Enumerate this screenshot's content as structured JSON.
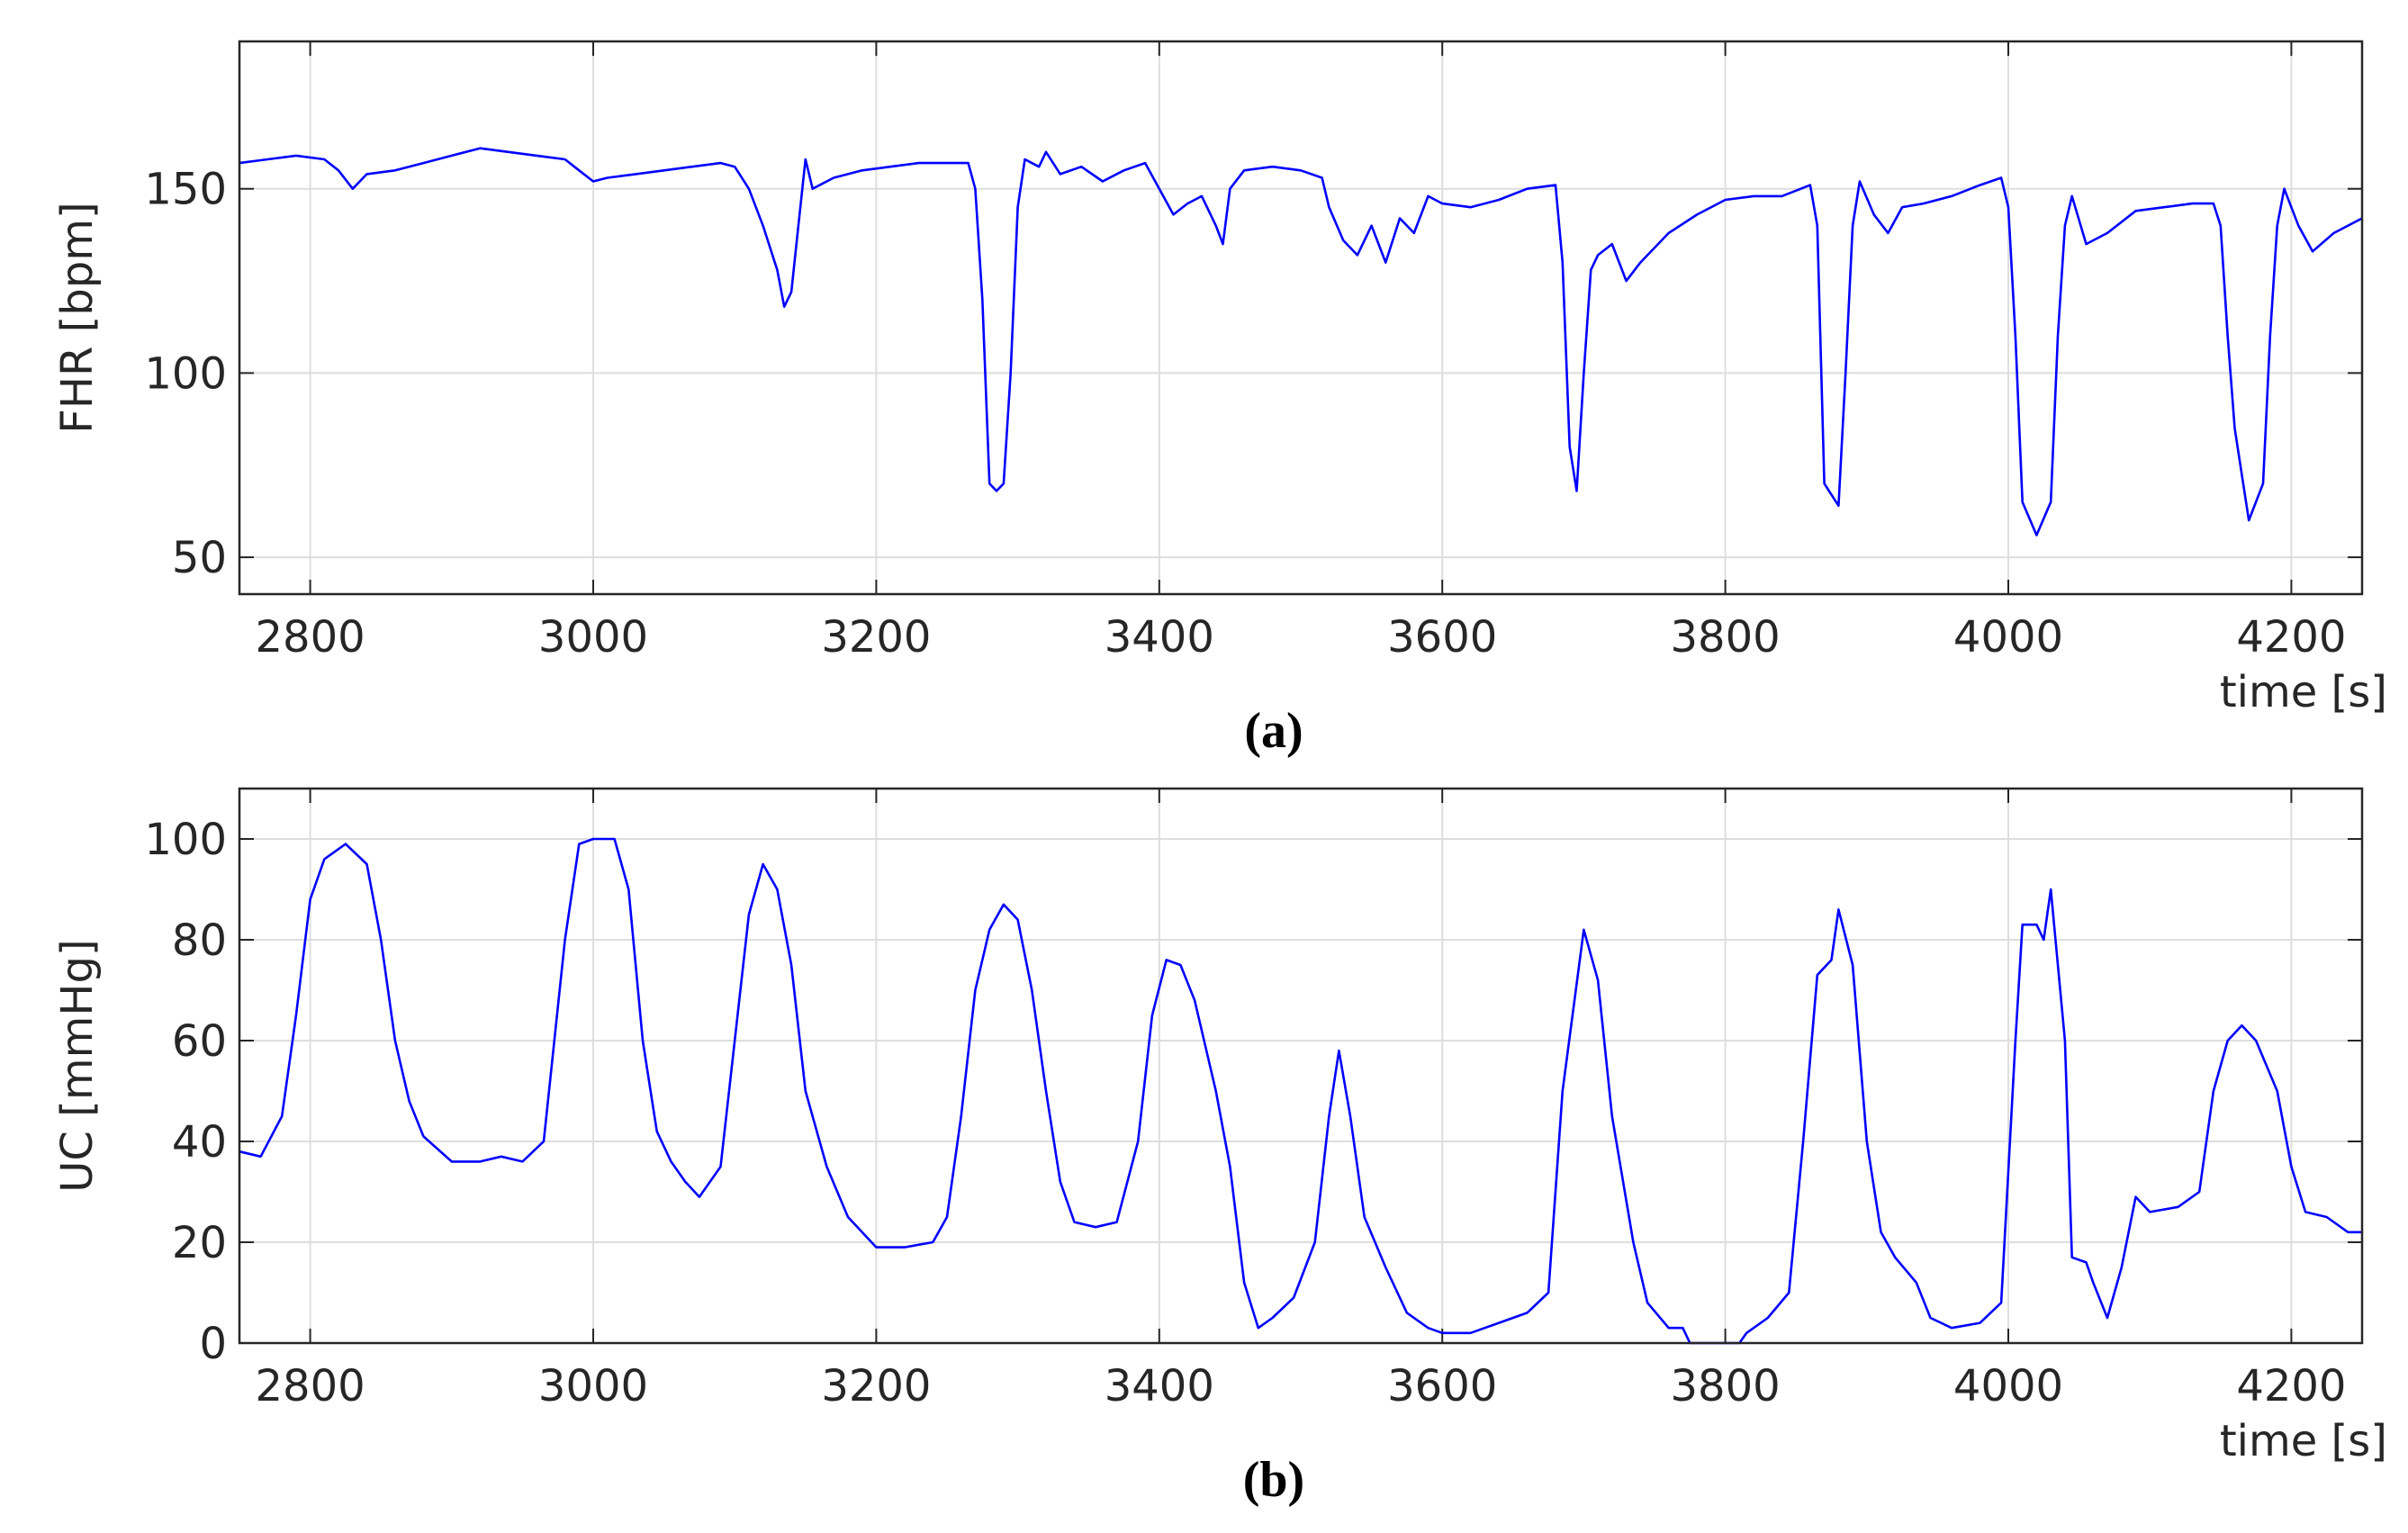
{
  "chart_data": [
    {
      "type": "line",
      "ylabel": "FHR [bpm]",
      "xlabel": "time [s]",
      "caption": "(a)",
      "color": "#0000ff",
      "grid": true,
      "xlim": [
        2750,
        4250
      ],
      "xticks": [
        2800,
        3000,
        3200,
        3400,
        3600,
        3800,
        4000,
        4200
      ],
      "ylim": [
        40,
        190
      ],
      "yticks": [
        50,
        100,
        150
      ],
      "x": [
        2750,
        2770,
        2790,
        2810,
        2820,
        2830,
        2840,
        2860,
        2880,
        2900,
        2920,
        2940,
        2960,
        2980,
        2990,
        3000,
        3010,
        3030,
        3050,
        3070,
        3090,
        3100,
        3110,
        3120,
        3130,
        3135,
        3140,
        3145,
        3150,
        3155,
        3170,
        3190,
        3210,
        3230,
        3250,
        3265,
        3270,
        3275,
        3280,
        3285,
        3290,
        3295,
        3300,
        3305,
        3315,
        3320,
        3330,
        3345,
        3360,
        3375,
        3390,
        3400,
        3410,
        3420,
        3430,
        3440,
        3445,
        3450,
        3460,
        3480,
        3500,
        3515,
        3520,
        3530,
        3540,
        3550,
        3560,
        3570,
        3580,
        3590,
        3600,
        3620,
        3640,
        3660,
        3680,
        3685,
        3690,
        3695,
        3700,
        3705,
        3710,
        3720,
        3730,
        3740,
        3760,
        3780,
        3800,
        3820,
        3840,
        3860,
        3865,
        3870,
        3880,
        3885,
        3890,
        3895,
        3905,
        3915,
        3925,
        3940,
        3960,
        3980,
        3995,
        4000,
        4005,
        4010,
        4020,
        4030,
        4035,
        4040,
        4045,
        4055,
        4070,
        4090,
        4110,
        4130,
        4145,
        4150,
        4155,
        4160,
        4170,
        4180,
        4185,
        4190,
        4195,
        4205,
        4215,
        4230,
        4250
      ],
      "values": [
        157,
        158,
        159,
        158,
        155,
        150,
        154,
        155,
        157,
        159,
        161,
        160,
        159,
        158,
        155,
        152,
        153,
        154,
        155,
        156,
        157,
        156,
        150,
        140,
        128,
        118,
        122,
        140,
        158,
        150,
        153,
        155,
        156,
        157,
        157,
        157,
        150,
        120,
        70,
        68,
        70,
        100,
        145,
        158,
        156,
        160,
        154,
        156,
        152,
        155,
        157,
        150,
        143,
        146,
        148,
        140,
        135,
        150,
        155,
        156,
        155,
        153,
        145,
        136,
        132,
        140,
        130,
        142,
        138,
        148,
        146,
        145,
        147,
        150,
        151,
        130,
        80,
        68,
        100,
        128,
        132,
        135,
        125,
        130,
        138,
        143,
        147,
        148,
        148,
        151,
        140,
        70,
        64,
        100,
        140,
        152,
        143,
        138,
        145,
        146,
        148,
        151,
        153,
        145,
        110,
        65,
        56,
        65,
        110,
        140,
        148,
        135,
        138,
        144,
        145,
        146,
        146,
        140,
        110,
        85,
        60,
        70,
        110,
        140,
        150,
        140,
        133,
        138,
        142
      ]
    },
    {
      "type": "line",
      "ylabel": "UC [mmHg]",
      "xlabel": "time [s]",
      "caption": "(b)",
      "color": "#0000ff",
      "grid": true,
      "xlim": [
        2750,
        4250
      ],
      "xticks": [
        2800,
        3000,
        3200,
        3400,
        3600,
        3800,
        4000,
        4200
      ],
      "ylim": [
        0,
        110
      ],
      "yticks": [
        0,
        20,
        40,
        60,
        80,
        100
      ],
      "x": [
        2750,
        2765,
        2780,
        2790,
        2800,
        2810,
        2825,
        2840,
        2850,
        2860,
        2870,
        2880,
        2900,
        2920,
        2935,
        2950,
        2965,
        2980,
        2990,
        3000,
        3015,
        3025,
        3035,
        3045,
        3055,
        3065,
        3075,
        3090,
        3100,
        3110,
        3120,
        3130,
        3140,
        3150,
        3165,
        3180,
        3200,
        3220,
        3240,
        3250,
        3260,
        3270,
        3280,
        3290,
        3300,
        3310,
        3320,
        3330,
        3340,
        3355,
        3370,
        3385,
        3395,
        3405,
        3415,
        3425,
        3440,
        3450,
        3460,
        3470,
        3480,
        3495,
        3510,
        3520,
        3527,
        3535,
        3545,
        3560,
        3575,
        3590,
        3600,
        3620,
        3640,
        3660,
        3675,
        3685,
        3700,
        3710,
        3720,
        3735,
        3745,
        3760,
        3770,
        3775,
        3810,
        3815,
        3830,
        3845,
        3855,
        3865,
        3875,
        3880,
        3890,
        3900,
        3910,
        3920,
        3935,
        3945,
        3960,
        3980,
        3995,
        4005,
        4010,
        4020,
        4025,
        4030,
        4040,
        4045,
        4055,
        4060,
        4070,
        4080,
        4090,
        4100,
        4120,
        4135,
        4145,
        4155,
        4165,
        4175,
        4190,
        4200,
        4210,
        4225,
        4240,
        4250
      ],
      "values": [
        38,
        37,
        45,
        65,
        88,
        96,
        99,
        95,
        80,
        60,
        48,
        41,
        36,
        36,
        37,
        36,
        40,
        80,
        99,
        100,
        100,
        90,
        60,
        42,
        36,
        32,
        29,
        35,
        60,
        85,
        95,
        90,
        75,
        50,
        35,
        25,
        19,
        19,
        20,
        25,
        45,
        70,
        82,
        87,
        84,
        70,
        50,
        32,
        24,
        23,
        24,
        40,
        65,
        76,
        75,
        68,
        50,
        35,
        12,
        3,
        5,
        9,
        20,
        45,
        58,
        45,
        25,
        15,
        6,
        3,
        2,
        2,
        4,
        6,
        10,
        50,
        82,
        72,
        45,
        20,
        8,
        3,
        3,
        0,
        0,
        2,
        5,
        10,
        40,
        73,
        76,
        86,
        75,
        40,
        22,
        17,
        12,
        5,
        3,
        4,
        8,
        60,
        83,
        83,
        80,
        90,
        60,
        17,
        16,
        12,
        5,
        15,
        29,
        26,
        27,
        30,
        50,
        60,
        63,
        60,
        50,
        35,
        26,
        25,
        22,
        22
      ]
    }
  ]
}
